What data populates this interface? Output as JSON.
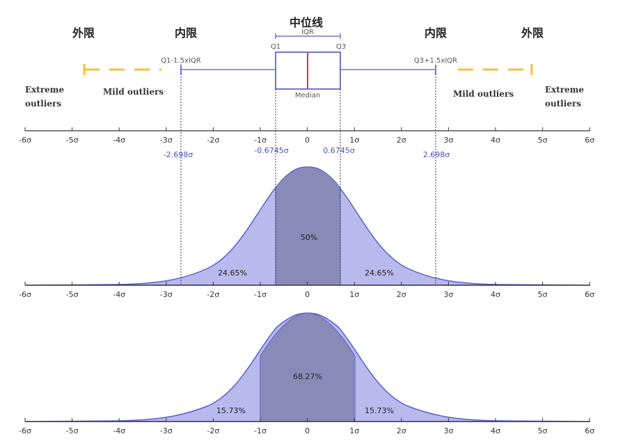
{
  "labels": {
    "median_cn": "中位线",
    "outer_fence_cn": "外限",
    "inner_fence_cn": "内限",
    "iqr": "IQR",
    "q1": "Q1",
    "q3": "Q3",
    "median": "Median",
    "lower_fence": "Q1-1.5xIQR",
    "upper_fence": "Q3+1.5xIQR",
    "extreme_line1": "Extreme",
    "extreme_line2": "outliers",
    "mild": "Mild outliers"
  },
  "sigma_marks": {
    "neg_fence": "-2.698σ",
    "neg_q": "-0.6745σ",
    "pos_q": "0.6745σ",
    "pos_fence": "2.698σ"
  },
  "tick_labels": [
    "-6σ",
    "-5σ",
    "-4σ",
    "-3σ",
    "-2σ",
    "-1σ",
    "0",
    "1σ",
    "2σ",
    "3σ",
    "4σ",
    "5σ",
    "6σ"
  ],
  "panel1": {
    "center": "50%",
    "left": "24.65%",
    "right": "24.65%"
  },
  "panel2": {
    "center": "68.27%",
    "left": "15.73%",
    "right": "15.73%"
  },
  "colors": {
    "box": "#6f74d6",
    "median_line": "#e03030",
    "whisker": "#f2c230",
    "curve_fill": "#b9b9ee",
    "curve_stroke": "#5a5fc8",
    "center_fill": "#8a8ab8"
  }
}
